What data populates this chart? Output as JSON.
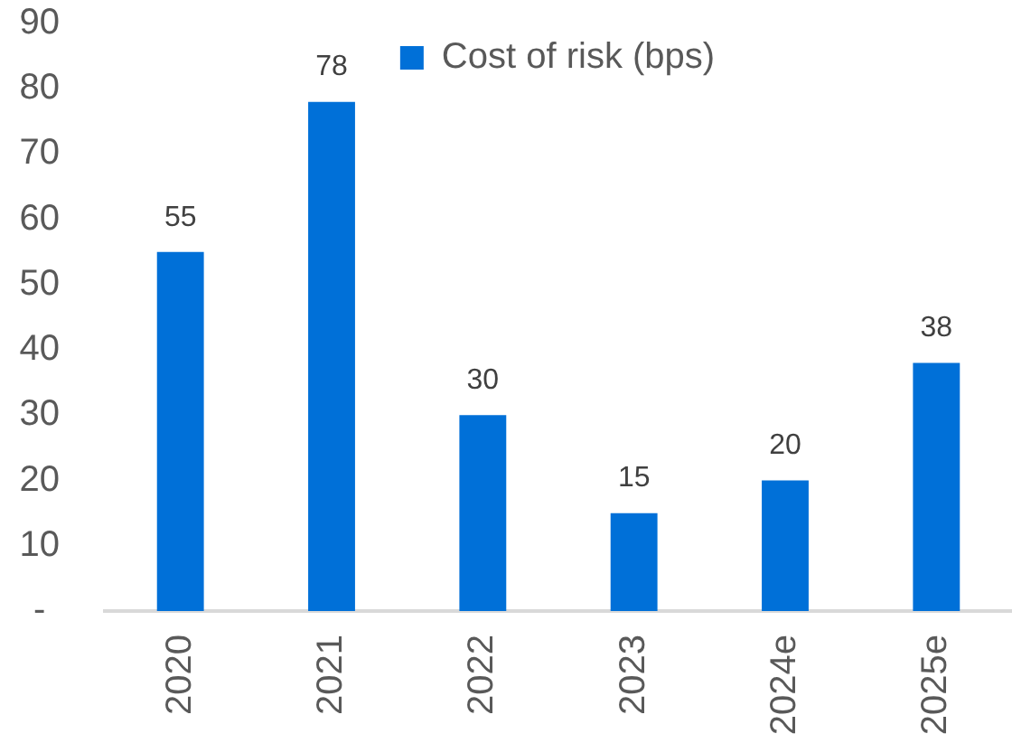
{
  "chart_data": {
    "type": "bar",
    "categories": [
      "2020",
      "2021",
      "2022",
      "2023",
      "2024e",
      "2025e"
    ],
    "series": [
      {
        "name": "Cost of risk (bps)",
        "color": "#0070d8",
        "values": [
          55,
          78,
          30,
          15,
          20,
          38
        ]
      }
    ],
    "ylim": [
      0,
      90
    ],
    "yticks": [
      {
        "value": 0,
        "label": "-"
      },
      10,
      20,
      30,
      40,
      50,
      60,
      70,
      80,
      90
    ],
    "grid": false,
    "legend": "top",
    "data_labels": true
  }
}
